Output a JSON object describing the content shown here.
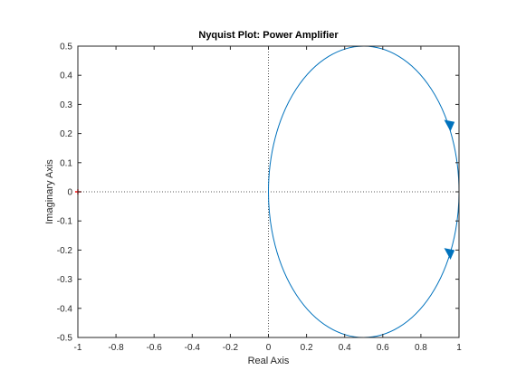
{
  "chart_data": {
    "type": "line",
    "title": "Nyquist Plot: Power Amplifier",
    "xlabel": "Real Axis",
    "ylabel": "Imaginary Axis",
    "xlim": [
      -1,
      1
    ],
    "ylim": [
      -0.5,
      0.5
    ],
    "xticks": [
      -1,
      -0.8,
      -0.6,
      -0.4,
      -0.2,
      0,
      0.2,
      0.4,
      0.6,
      0.8,
      1
    ],
    "xtick_labels": [
      "-1",
      "-0.8",
      "-0.6",
      "-0.4",
      "-0.2",
      "0",
      "0.2",
      "0.4",
      "0.6",
      "0.8",
      "1"
    ],
    "yticks": [
      0.5,
      0.4,
      0.3,
      0.2,
      0.1,
      0,
      -0.1,
      -0.2,
      -0.3,
      -0.4,
      -0.5
    ],
    "ytick_labels": [
      "0.5",
      "0.4",
      "0.3",
      "0.2",
      "0.1",
      "0",
      "-0.1",
      "-0.2",
      "-0.3",
      "-0.4",
      "-0.5"
    ],
    "grid": false,
    "series": [
      {
        "center": [
          0.5,
          0
        ],
        "radius": 0.5,
        "closed": true,
        "color": "#0072BD",
        "arrows": [
          {
            "x": 0.95,
            "y": 0.22,
            "direction": "down"
          },
          {
            "x": 0.95,
            "y": -0.22,
            "direction": "down"
          }
        ]
      }
    ],
    "reference_lines": {
      "x": 0,
      "y": 0,
      "style": "dotted",
      "color": "#262626"
    },
    "critical_point": {
      "x": -1,
      "y": 0,
      "marker": "+",
      "color": "#ff0000"
    }
  }
}
